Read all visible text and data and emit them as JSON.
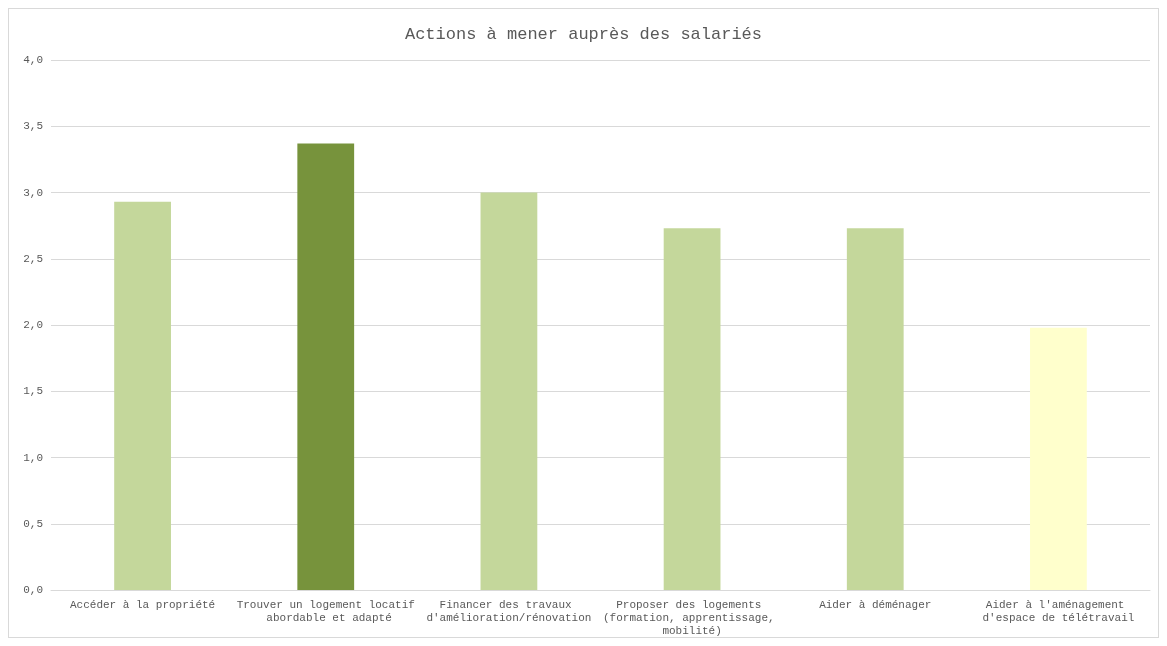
{
  "chart_data": {
    "type": "bar",
    "title": "Actions à mener auprès des salariés",
    "categories": [
      "Accéder à la propriété",
      "Trouver un logement locatif abordable et adapté",
      "Financer des travaux d'amélioration/rénovation",
      "Proposer des logements (formation, apprentissage, mobilité)",
      "Aider à déménager",
      "Aider à l'aménagement d'espace de télétravail"
    ],
    "values": [
      2.93,
      3.37,
      3.0,
      2.73,
      2.73,
      1.98
    ],
    "colors": [
      "#c4d79b",
      "#77933c",
      "#c4d79b",
      "#c4d79b",
      "#c4d79b",
      "#ffffcc"
    ],
    "ylim": [
      0,
      4
    ],
    "yticks": [
      {
        "value": 0,
        "label": "0,0"
      },
      {
        "value": 0.5,
        "label": "0,5"
      },
      {
        "value": 1,
        "label": "1,0"
      },
      {
        "value": 1.5,
        "label": "1,5"
      },
      {
        "value": 2,
        "label": "2,0"
      },
      {
        "value": 2.5,
        "label": "2,5"
      },
      {
        "value": 3,
        "label": "3,0"
      },
      {
        "value": 3.5,
        "label": "3,5"
      },
      {
        "value": 4,
        "label": "4,0"
      }
    ],
    "grid": true
  }
}
